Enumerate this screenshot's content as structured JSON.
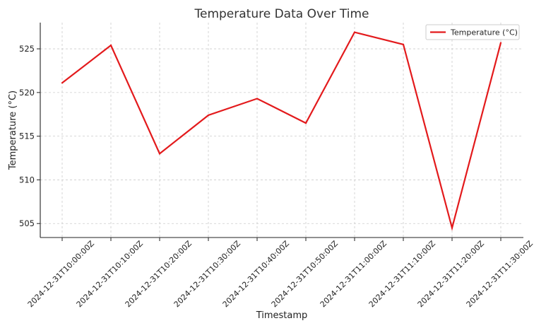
{
  "chart_data": {
    "type": "line",
    "title": "Temperature Data Over Time",
    "xlabel": "Timestamp",
    "ylabel": "Temperature (°C)",
    "categories": [
      "2024-12-31T10:00:00Z",
      "2024-12-31T10:10:00Z",
      "2024-12-31T10:20:00Z",
      "2024-12-31T10:30:00Z",
      "2024-12-31T10:40:00Z",
      "2024-12-31T10:50:00Z",
      "2024-12-31T11:00:00Z",
      "2024-12-31T11:10:00Z",
      "2024-12-31T11:20:00Z",
      "2024-12-31T11:30:00Z"
    ],
    "series": [
      {
        "name": "Temperature (°C)",
        "color": "#e31a1c",
        "values": [
          521.1,
          525.4,
          513.0,
          517.4,
          519.3,
          516.5,
          526.9,
          525.5,
          504.5,
          525.7
        ]
      }
    ],
    "yticks": [
      505,
      510,
      515,
      520,
      525
    ],
    "ylim": [
      503.4,
      528.0
    ],
    "grid": true,
    "legend": "top-right"
  }
}
